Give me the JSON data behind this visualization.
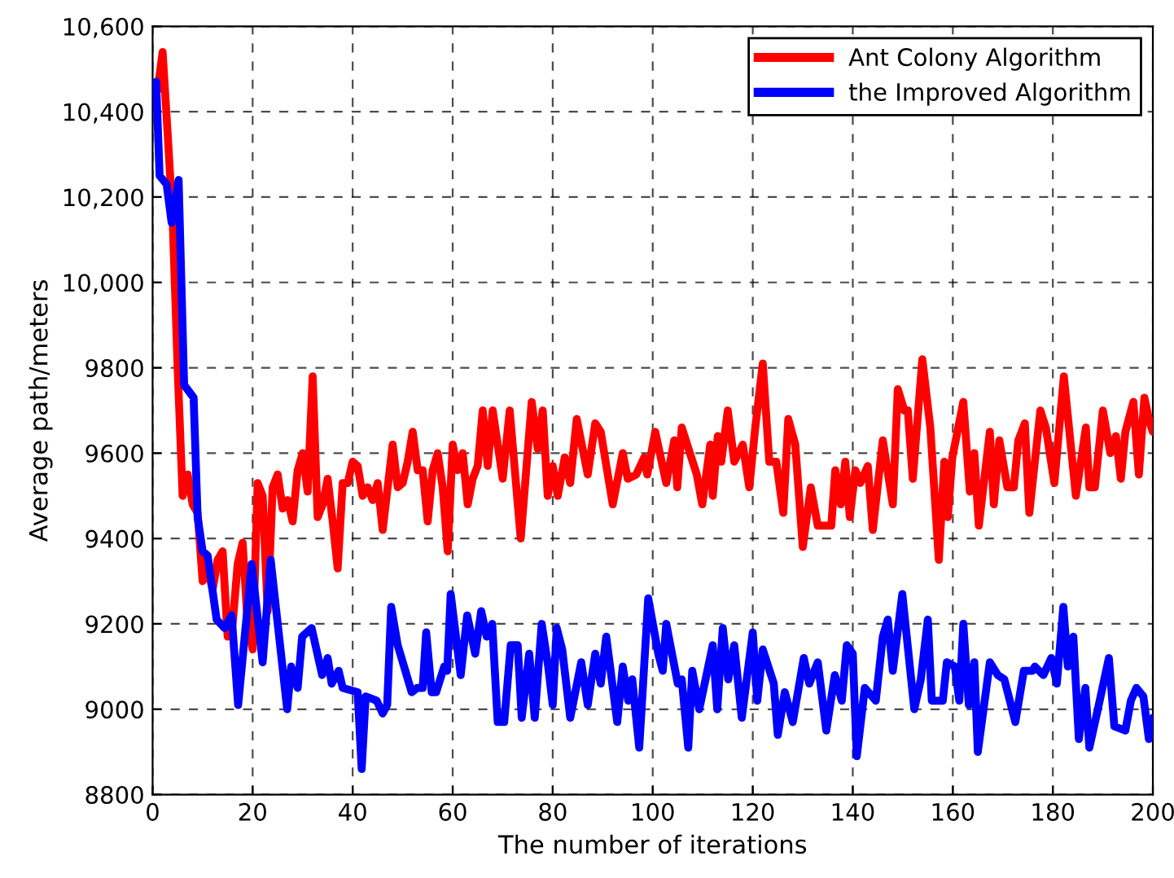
{
  "chart_data": {
    "type": "line",
    "xlabel": "The number of iterations",
    "ylabel": "Average path/meters",
    "xlim": [
      0,
      200
    ],
    "xticks": [
      0,
      20,
      40,
      60,
      80,
      100,
      120,
      140,
      160,
      180,
      200
    ],
    "ylim": [
      8800,
      10600
    ],
    "yticks": [
      8800,
      9000,
      9200,
      9400,
      9600,
      9800,
      {
        "value": 10000,
        "label": "10,000"
      },
      {
        "value": 10200,
        "label": "10,200"
      },
      {
        "value": 10400,
        "label": "10,400"
      },
      {
        "value": 10600,
        "label": "10,600"
      }
    ],
    "grid": true,
    "legend": "top right",
    "line_style": "solid",
    "marker": "none",
    "series": [
      {
        "name": "Ant Colony Algorithm",
        "color": "#ff0000",
        "x": [
          1,
          2,
          3,
          4,
          5,
          6,
          7,
          8,
          9,
          10,
          11,
          12,
          13,
          14,
          15,
          16,
          17,
          18,
          19,
          20,
          21,
          22,
          23,
          24,
          25,
          26,
          27,
          28,
          29,
          30,
          31,
          32,
          33,
          34,
          35,
          36,
          37,
          38,
          39,
          40,
          41,
          42,
          43,
          44,
          45,
          46,
          47,
          48,
          49,
          50,
          51,
          52,
          53,
          54,
          55,
          56,
          57,
          58,
          59,
          60,
          61,
          62,
          63,
          64,
          65,
          66,
          67,
          68,
          70,
          71.4,
          73.6,
          75.8,
          77,
          78,
          79,
          80,
          81,
          82.4,
          83.5,
          84.8,
          87,
          88.5,
          89.6,
          92,
          94,
          95,
          96.7,
          98.3,
          98.9,
          100.5,
          102.7,
          104.3,
          104.9,
          105.8,
          108.8,
          109.9,
          111.5,
          112,
          113,
          113.7,
          115,
          116.3,
          118,
          119.3,
          120.5,
          122,
          123.3,
          124.7,
          126.1,
          127.1,
          128.5,
          130,
          131.6,
          133,
          135.7,
          136.5,
          137.6,
          138.5,
          139.4,
          140.5,
          141.5,
          143,
          144,
          146,
          148,
          149,
          150.3,
          151,
          152,
          153.9,
          155.5,
          157.2,
          158.3,
          159,
          159.9,
          162.1,
          163.4,
          164.3,
          165.2,
          167.4,
          168.2,
          169.3,
          170.9,
          172.2,
          173.1,
          174.4,
          175.3,
          177.5,
          178.6,
          180.3,
          182.2,
          184.6,
          186.6,
          187.3,
          188.4,
          190,
          191.5,
          192.6,
          193.6,
          194.5,
          196.1,
          197.2,
          198.3,
          199.4,
          200
        ],
        "values": [
          10450,
          10540,
          10350,
          10150,
          9800,
          9500,
          9550,
          9480,
          9460,
          9300,
          9330,
          9280,
          9350,
          9370,
          9170,
          9200,
          9340,
          9390,
          9200,
          9140,
          9530,
          9500,
          9230,
          9520,
          9550,
          9470,
          9490,
          9440,
          9560,
          9600,
          9510,
          9780,
          9450,
          9480,
          9540,
          9440,
          9330,
          9530,
          9530,
          9580,
          9570,
          9500,
          9520,
          9490,
          9530,
          9420,
          9520,
          9620,
          9520,
          9530,
          9580,
          9650,
          9560,
          9560,
          9440,
          9560,
          9600,
          9520,
          9370,
          9620,
          9560,
          9600,
          9480,
          9540,
          9570,
          9700,
          9570,
          9700,
          9540,
          9700,
          9400,
          9720,
          9610,
          9700,
          9500,
          9570,
          9500,
          9590,
          9530,
          9680,
          9550,
          9670,
          9650,
          9480,
          9600,
          9540,
          9550,
          9590,
          9550,
          9650,
          9530,
          9630,
          9520,
          9660,
          9550,
          9480,
          9620,
          9500,
          9640,
          9580,
          9700,
          9580,
          9620,
          9520,
          9660,
          9810,
          9580,
          9580,
          9460,
          9680,
          9620,
          9380,
          9520,
          9430,
          9430,
          9560,
          9480,
          9580,
          9450,
          9560,
          9530,
          9570,
          9420,
          9630,
          9480,
          9750,
          9700,
          9700,
          9540,
          9820,
          9660,
          9350,
          9580,
          9450,
          9590,
          9720,
          9510,
          9600,
          9430,
          9650,
          9480,
          9630,
          9520,
          9520,
          9630,
          9670,
          9460,
          9700,
          9660,
          9530,
          9780,
          9500,
          9660,
          9520,
          9520,
          9700,
          9600,
          9640,
          9540,
          9650,
          9720,
          9550,
          9730,
          9670,
          9650
        ]
      },
      {
        "name": "the Improved Algorithm",
        "color": "#0000ff",
        "x": [
          0.7,
          1.4,
          2.8,
          3.8,
          5.2,
          6.3,
          8.2,
          9,
          10,
          11,
          12.8,
          14.4,
          15.8,
          17.1,
          19.8,
          22,
          23.6,
          26.9,
          27.7,
          29,
          29.9,
          31.8,
          33.9,
          35,
          35.8,
          37.2,
          38,
          41,
          41.8,
          42.6,
          44.8,
          46,
          46.9,
          47.7,
          49,
          51.8,
          52.9,
          54,
          54.7,
          55.8,
          56.7,
          58.3,
          58.9,
          59.6,
          61.6,
          62.9,
          64.5,
          65.7,
          66.8,
          67.9,
          69,
          70.3,
          71.6,
          73,
          73.8,
          75.3,
          76.4,
          77.8,
          79.1,
          80,
          80.8,
          81.9,
          83.5,
          85.7,
          87,
          88.5,
          89.6,
          90.7,
          92.9,
          94,
          95.1,
          95.9,
          97.3,
          99.1,
          101.1,
          102,
          102.7,
          105,
          105.8,
          107.1,
          107.9,
          109.3,
          112,
          112.9,
          114,
          115.1,
          116.3,
          117.8,
          120,
          120.9,
          122,
          124.2,
          125,
          126.4,
          128,
          130.2,
          131.3,
          133,
          134.7,
          136.4,
          137.8,
          138.8,
          140,
          140.8,
          142.4,
          144.6,
          146,
          147,
          148,
          149.9,
          152.3,
          153.6,
          155,
          155.8,
          158,
          158.8,
          160.4,
          161.3,
          162.1,
          163.2,
          164.3,
          165,
          167.4,
          169,
          170.3,
          172.5,
          174.2,
          175.9,
          176.4,
          178.1,
          179.7,
          180.8,
          182.1,
          183,
          184.1,
          185.2,
          186.5,
          187.3,
          189,
          191.2,
          192.3,
          194.5,
          195.6,
          196.7,
          198.1,
          199.2,
          200
        ],
        "values": [
          10470,
          10250,
          10230,
          10140,
          10240,
          9760,
          9730,
          9450,
          9370,
          9360,
          9210,
          9190,
          9220,
          9010,
          9340,
          9110,
          9350,
          9000,
          9100,
          9050,
          9170,
          9190,
          9080,
          9120,
          9060,
          9090,
          9050,
          9040,
          8860,
          9030,
          9020,
          8990,
          9010,
          9240,
          9150,
          9040,
          9050,
          9050,
          9180,
          9040,
          9040,
          9100,
          9090,
          9270,
          9080,
          9220,
          9130,
          9230,
          9170,
          9200,
          8970,
          8970,
          9150,
          9150,
          8980,
          9130,
          8980,
          9200,
          9100,
          9010,
          9190,
          9140,
          8980,
          9110,
          9010,
          9130,
          9060,
          9170,
          8970,
          9100,
          9020,
          9070,
          8910,
          9260,
          9130,
          9090,
          9200,
          9060,
          9070,
          8910,
          9090,
          9000,
          9150,
          9000,
          9190,
          9070,
          9150,
          8980,
          9180,
          9020,
          9140,
          9060,
          8940,
          9040,
          8970,
          9120,
          9060,
          9110,
          8950,
          9080,
          9020,
          9150,
          9130,
          8890,
          9050,
          9020,
          9170,
          9210,
          9090,
          9270,
          9000,
          9070,
          9210,
          9020,
          9020,
          9110,
          9100,
          9020,
          9200,
          9010,
          9110,
          8900,
          9110,
          9080,
          9070,
          8970,
          9090,
          9090,
          9100,
          9080,
          9120,
          9060,
          9240,
          9100,
          9170,
          8930,
          9050,
          8910,
          9000,
          9120,
          8960,
          8950,
          9020,
          9050,
          9030,
          8930,
          8980
        ]
      }
    ]
  }
}
